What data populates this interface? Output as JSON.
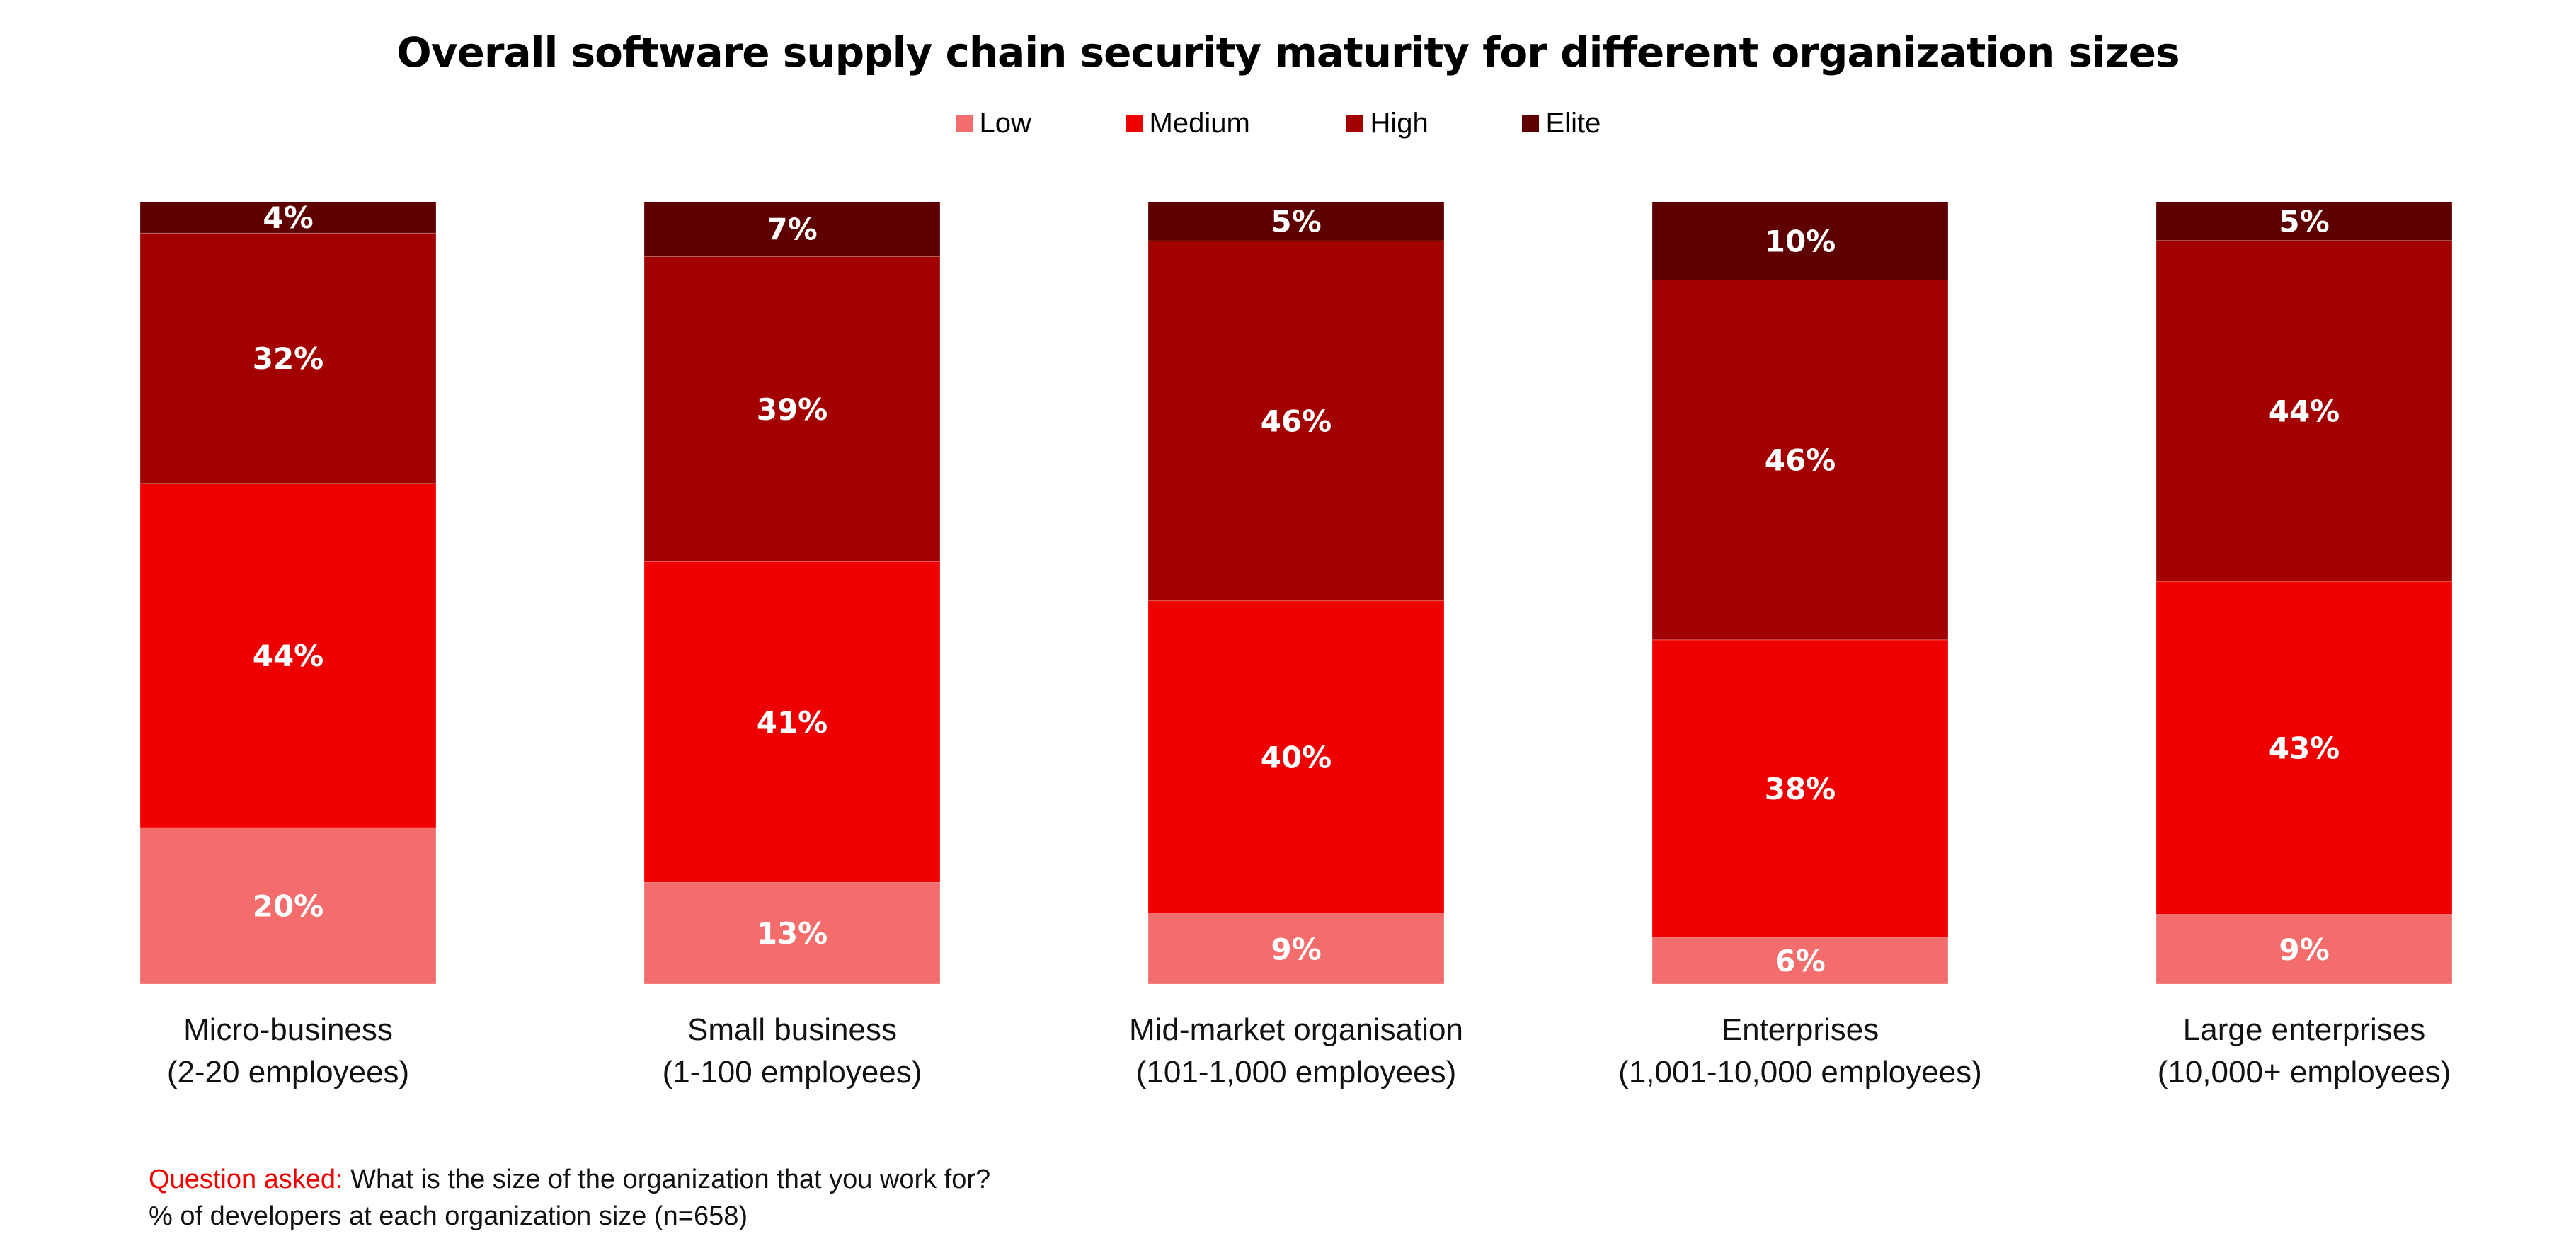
{
  "chart_data": {
    "type": "bar",
    "stacked": true,
    "title": "Overall software supply chain security maturity for different organization sizes",
    "categories": [
      [
        "Micro-business",
        "(2-20 employees)"
      ],
      [
        "Small business",
        "(1-100 employees)"
      ],
      [
        "Mid-market organisation",
        "(101-1,000 employees)"
      ],
      [
        "Enterprises",
        "(1,001-10,000 employees)"
      ],
      [
        "Large enterprises",
        "(10,000+ employees)"
      ]
    ],
    "series": [
      {
        "name": "Low",
        "color": "#f46d6d",
        "values": [
          20,
          13,
          9,
          6,
          9
        ]
      },
      {
        "name": "Medium",
        "color": "#ee0000",
        "values": [
          44,
          41,
          40,
          38,
          43
        ]
      },
      {
        "name": "High",
        "color": "#a30000",
        "values": [
          32,
          39,
          46,
          46,
          44
        ]
      },
      {
        "name": "Elite",
        "color": "#5f0000",
        "values": [
          4,
          7,
          5,
          10,
          5
        ]
      }
    ],
    "unit": "%",
    "legend": "top-center",
    "grid": false,
    "axes_visible": false
  },
  "footer": {
    "question_label": "Question asked:",
    "question_text": " What is the size of the organization that you work for?",
    "note": "% of developers at each organization size (n=658)"
  }
}
